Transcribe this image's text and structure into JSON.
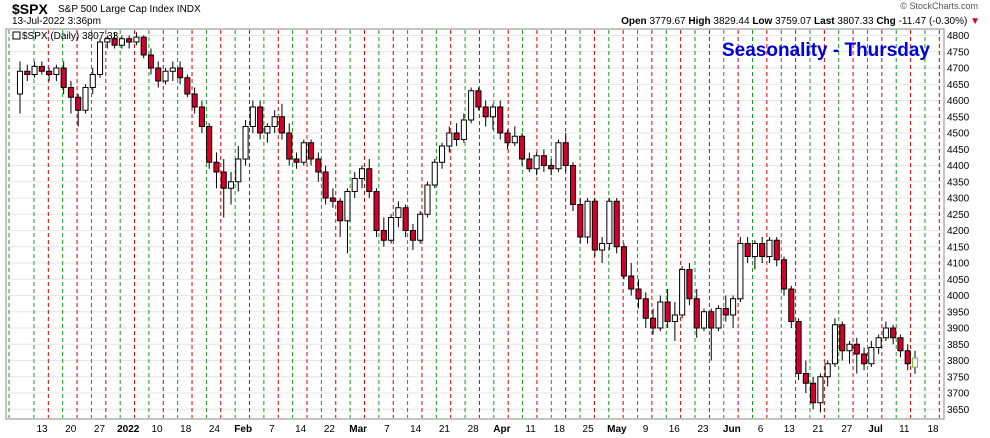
{
  "header": {
    "symbol": "$SPX",
    "description": "S&P 500 Large Cap Index  INDX",
    "timestamp": "13-Jul-2022 3:36pm",
    "open_label": "Open",
    "open": "3779.67",
    "high_label": "High",
    "high": "3829.44",
    "low_label": "Low",
    "low": "3759.07",
    "last_label": "Last",
    "last": "3807.33",
    "chg_label": "Chg",
    "chg": "-11.47 (-0.30%)",
    "brand": "© StockCharts.com"
  },
  "legend": {
    "label": "$SPX (Daily) 3807.33"
  },
  "chart_data": {
    "type": "candlestick",
    "title": "Seasonality - Thursday",
    "title_color": "#0000dd",
    "ylim": [
      3620,
      4820
    ],
    "yticks": [
      3650,
      3700,
      3750,
      3800,
      3850,
      3900,
      3950,
      4000,
      4050,
      4100,
      4150,
      4200,
      4250,
      4300,
      4350,
      4400,
      4450,
      4500,
      4550,
      4600,
      4650,
      4700,
      4750,
      4800
    ],
    "xtick_labels": [
      "13",
      "20",
      "27",
      "2022",
      "10",
      "18",
      "24",
      "Feb",
      "7",
      "14",
      "22",
      "Mar",
      "7",
      "14",
      "21",
      "28",
      "Apr",
      "11",
      "18",
      "25",
      "May",
      "9",
      "16",
      "23",
      "Jun",
      "6",
      "13",
      "21",
      "27",
      "Jul",
      "11",
      "18"
    ],
    "bold_xtick_labels": [
      "2022",
      "Feb",
      "Mar",
      "Apr",
      "May",
      "Jun",
      "Jul"
    ],
    "up_color": "#ffffff",
    "down_color": "#d4002c",
    "vline_green": "#1a9a1a",
    "vline_red": "#d40000",
    "candles": [
      [
        4620,
        4720,
        4560,
        4690
      ],
      [
        4690,
        4710,
        4660,
        4680
      ],
      [
        4680,
        4720,
        4670,
        4705
      ],
      [
        4705,
        4720,
        4680,
        4690
      ],
      [
        4690,
        4700,
        4660,
        4680
      ],
      [
        4680,
        4710,
        4660,
        4700
      ],
      [
        4700,
        4720,
        4620,
        4640
      ],
      [
        4640,
        4660,
        4560,
        4610
      ],
      [
        4610,
        4620,
        4520,
        4570
      ],
      [
        4570,
        4650,
        4560,
        4640
      ],
      [
        4640,
        4700,
        4620,
        4680
      ],
      [
        4680,
        4790,
        4670,
        4780
      ],
      [
        4780,
        4800,
        4760,
        4790
      ],
      [
        4790,
        4810,
        4760,
        4770
      ],
      [
        4770,
        4800,
        4760,
        4790
      ],
      [
        4790,
        4800,
        4760,
        4780
      ],
      [
        4780,
        4810,
        4770,
        4795
      ],
      [
        4795,
        4800,
        4730,
        4740
      ],
      [
        4740,
        4760,
        4680,
        4700
      ],
      [
        4700,
        4720,
        4640,
        4660
      ],
      [
        4660,
        4700,
        4650,
        4690
      ],
      [
        4690,
        4720,
        4660,
        4700
      ],
      [
        4700,
        4720,
        4650,
        4670
      ],
      [
        4670,
        4680,
        4610,
        4620
      ],
      [
        4620,
        4640,
        4560,
        4580
      ],
      [
        4580,
        4600,
        4500,
        4520
      ],
      [
        4520,
        4530,
        4390,
        4410
      ],
      [
        4410,
        4440,
        4330,
        4380
      ],
      [
        4380,
        4420,
        4240,
        4330
      ],
      [
        4330,
        4380,
        4280,
        4350
      ],
      [
        4350,
        4460,
        4320,
        4420
      ],
      [
        4420,
        4540,
        4400,
        4520
      ],
      [
        4520,
        4600,
        4500,
        4580
      ],
      [
        4580,
        4600,
        4480,
        4500
      ],
      [
        4500,
        4530,
        4470,
        4520
      ],
      [
        4520,
        4570,
        4500,
        4550
      ],
      [
        4550,
        4590,
        4480,
        4500
      ],
      [
        4500,
        4530,
        4400,
        4420
      ],
      [
        4420,
        4440,
        4390,
        4410
      ],
      [
        4410,
        4480,
        4400,
        4470
      ],
      [
        4470,
        4480,
        4400,
        4420
      ],
      [
        4420,
        4440,
        4350,
        4380
      ],
      [
        4380,
        4400,
        4280,
        4300
      ],
      [
        4300,
        4330,
        4270,
        4290
      ],
      [
        4290,
        4300,
        4180,
        4230
      ],
      [
        4230,
        4330,
        4130,
        4320
      ],
      [
        4320,
        4380,
        4300,
        4360
      ],
      [
        4360,
        4400,
        4330,
        4390
      ],
      [
        4390,
        4420,
        4300,
        4320
      ],
      [
        4320,
        4330,
        4180,
        4200
      ],
      [
        4200,
        4240,
        4150,
        4170
      ],
      [
        4170,
        4250,
        4160,
        4240
      ],
      [
        4240,
        4290,
        4210,
        4270
      ],
      [
        4270,
        4280,
        4180,
        4200
      ],
      [
        4200,
        4220,
        4140,
        4170
      ],
      [
        4170,
        4260,
        4160,
        4250
      ],
      [
        4250,
        4350,
        4240,
        4340
      ],
      [
        4340,
        4420,
        4330,
        4410
      ],
      [
        4410,
        4470,
        4390,
        4460
      ],
      [
        4460,
        4520,
        4440,
        4500
      ],
      [
        4500,
        4530,
        4460,
        4480
      ],
      [
        4480,
        4560,
        4470,
        4540
      ],
      [
        4540,
        4640,
        4530,
        4630
      ],
      [
        4630,
        4640,
        4570,
        4580
      ],
      [
        4580,
        4600,
        4520,
        4550
      ],
      [
        4550,
        4590,
        4510,
        4580
      ],
      [
        4580,
        4600,
        4480,
        4500
      ],
      [
        4500,
        4510,
        4450,
        4470
      ],
      [
        4470,
        4520,
        4460,
        4490
      ],
      [
        4490,
        4500,
        4400,
        4420
      ],
      [
        4420,
        4440,
        4380,
        4390
      ],
      [
        4390,
        4440,
        4370,
        4430
      ],
      [
        4430,
        4450,
        4380,
        4400
      ],
      [
        4400,
        4420,
        4370,
        4390
      ],
      [
        4390,
        4480,
        4380,
        4470
      ],
      [
        4470,
        4500,
        4380,
        4400
      ],
      [
        4400,
        4410,
        4260,
        4280
      ],
      [
        4280,
        4300,
        4160,
        4180
      ],
      [
        4180,
        4300,
        4160,
        4290
      ],
      [
        4290,
        4300,
        4120,
        4140
      ],
      [
        4140,
        4180,
        4100,
        4160
      ],
      [
        4160,
        4300,
        4140,
        4290
      ],
      [
        4290,
        4300,
        4130,
        4150
      ],
      [
        4150,
        4160,
        4050,
        4060
      ],
      [
        4060,
        4100,
        4000,
        4020
      ],
      [
        4020,
        4050,
        3960,
        3990
      ],
      [
        3990,
        4010,
        3900,
        3930
      ],
      [
        3930,
        3960,
        3880,
        3900
      ],
      [
        3900,
        4000,
        3890,
        3980
      ],
      [
        3980,
        4020,
        3900,
        3920
      ],
      [
        3920,
        3980,
        3860,
        3940
      ],
      [
        3940,
        4090,
        3930,
        4080
      ],
      [
        4080,
        4100,
        3970,
        3990
      ],
      [
        3990,
        4020,
        3870,
        3900
      ],
      [
        3900,
        3960,
        3890,
        3950
      ],
      [
        3950,
        3960,
        3800,
        3900
      ],
      [
        3900,
        3970,
        3890,
        3960
      ],
      [
        3960,
        4000,
        3920,
        3940
      ],
      [
        3940,
        4000,
        3900,
        3990
      ],
      [
        3990,
        4180,
        3980,
        4160
      ],
      [
        4160,
        4180,
        4100,
        4120
      ],
      [
        4120,
        4170,
        4080,
        4160
      ],
      [
        4160,
        4180,
        4100,
        4120
      ],
      [
        4120,
        4180,
        4100,
        4170
      ],
      [
        4170,
        4180,
        4090,
        4110
      ],
      [
        4110,
        4120,
        4000,
        4020
      ],
      [
        4020,
        4030,
        3900,
        3920
      ],
      [
        3920,
        3930,
        3740,
        3760
      ],
      [
        3760,
        3800,
        3700,
        3730
      ],
      [
        3730,
        3750,
        3650,
        3670
      ],
      [
        3670,
        3760,
        3640,
        3750
      ],
      [
        3750,
        3800,
        3720,
        3790
      ],
      [
        3790,
        3930,
        3780,
        3910
      ],
      [
        3910,
        3920,
        3800,
        3830
      ],
      [
        3830,
        3860,
        3790,
        3850
      ],
      [
        3850,
        3870,
        3760,
        3820
      ],
      [
        3820,
        3840,
        3770,
        3790
      ],
      [
        3790,
        3860,
        3780,
        3840
      ],
      [
        3840,
        3880,
        3820,
        3870
      ],
      [
        3870,
        3920,
        3860,
        3900
      ],
      [
        3900,
        3910,
        3850,
        3870
      ],
      [
        3870,
        3880,
        3810,
        3830
      ],
      [
        3830,
        3850,
        3770,
        3790
      ],
      [
        3779.67,
        3829.44,
        3759.07,
        3807.33
      ]
    ]
  }
}
